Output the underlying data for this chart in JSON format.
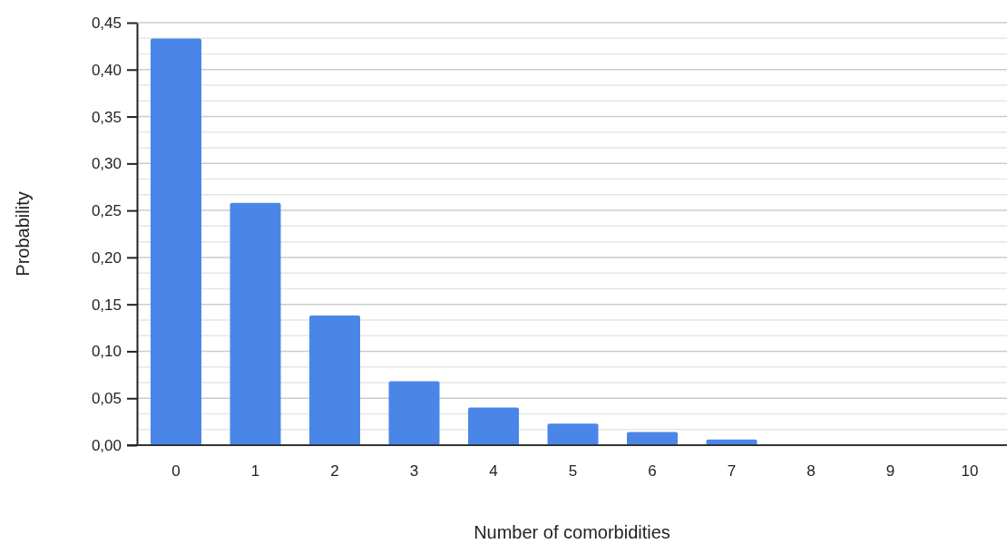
{
  "chart_data": {
    "type": "bar",
    "xlabel": "Number of comorbidities",
    "ylabel": "Probability",
    "categories": [
      "0",
      "1",
      "2",
      "3",
      "4",
      "5",
      "6",
      "7",
      "8",
      "9",
      "10"
    ],
    "values": [
      0.433,
      0.258,
      0.138,
      0.068,
      0.04,
      0.023,
      0.014,
      0.006,
      0,
      0,
      0
    ],
    "color": "#4a86e8",
    "ylim": [
      0,
      0.45
    ],
    "yticks": [
      {
        "value": 0,
        "label": "0,00"
      },
      {
        "value": 0.05,
        "label": "0,05"
      },
      {
        "value": 0.1,
        "label": "0,10"
      },
      {
        "value": 0.15,
        "label": "0,15"
      },
      {
        "value": 0.2,
        "label": "0,20"
      },
      {
        "value": 0.25,
        "label": "0,25"
      },
      {
        "value": 0.3,
        "label": "0,30"
      },
      {
        "value": 0.35,
        "label": "0,35"
      },
      {
        "value": 0.4,
        "label": "0,40"
      },
      {
        "value": 0.45,
        "label": "0,45"
      }
    ],
    "grid": true
  }
}
